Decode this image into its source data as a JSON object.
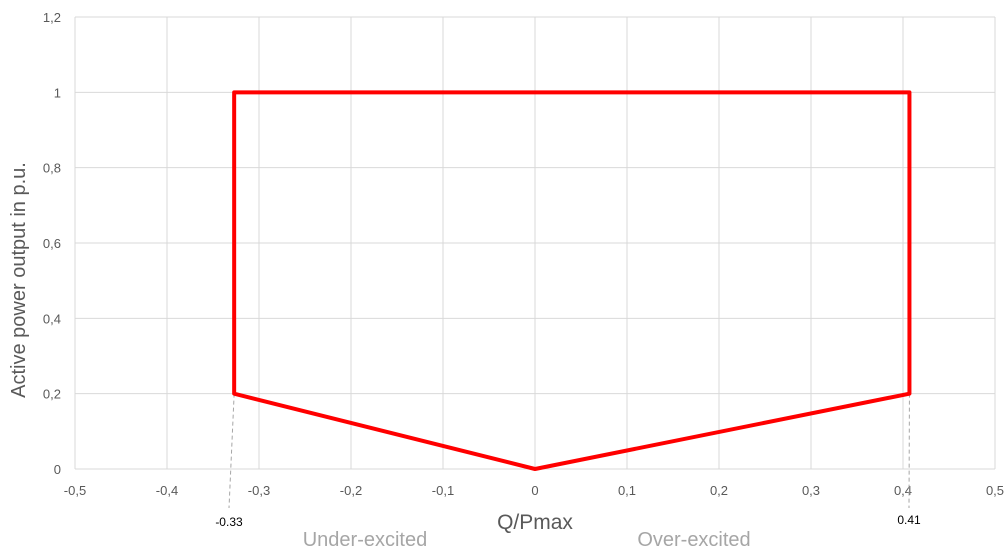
{
  "chart_data": {
    "type": "line",
    "xlabel": "Q/Pmax",
    "ylabel": "Active power output in p.u.",
    "xlim": [
      -0.5,
      0.5
    ],
    "ylim": [
      0,
      1.2
    ],
    "x_ticks": [
      -0.5,
      -0.4,
      -0.3,
      -0.2,
      -0.1,
      0,
      0.1,
      0.2,
      0.3,
      0.4,
      0.5
    ],
    "x_tick_labels": [
      "-0,5",
      "-0,4",
      "-0,3",
      "-0,2",
      "-0,1",
      "0",
      "0,1",
      "0,2",
      "0,3",
      "0,4",
      "0,5"
    ],
    "y_ticks": [
      0,
      0.2,
      0.4,
      0.6,
      0.8,
      1,
      1.2
    ],
    "y_tick_labels": [
      "0",
      "0,2",
      "0,4",
      "0,6",
      "0,8",
      "1",
      "1,2"
    ],
    "grid": true,
    "series": [
      {
        "color": "#ff0000",
        "x": [
          0,
          0.407,
          0.407,
          -0.327,
          -0.327,
          0
        ],
        "y": [
          0,
          0.2,
          1,
          1,
          0.2,
          0
        ]
      }
    ],
    "annotations": {
      "left_marker": {
        "label": "-0.33",
        "x": -0.327,
        "y": 0.2
      },
      "right_marker": {
        "label": "0.41",
        "x": 0.407,
        "y": 0.2
      },
      "under_excited": "Under-excited",
      "over_excited": "Over-excited"
    },
    "colors": {
      "line": "#ff0000",
      "grid": "#d9d9d9",
      "text": "#595959",
      "region_text": "#a6a6a6",
      "marker_dash": "#a6a6a6"
    }
  }
}
